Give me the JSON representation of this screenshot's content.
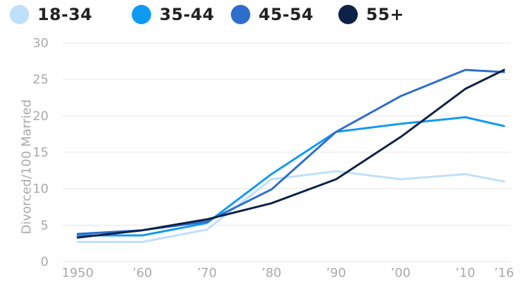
{
  "chart_data": {
    "type": "line",
    "title": "",
    "xlabel": "",
    "ylabel": "Divorced/100 Married",
    "x": [
      1950,
      1960,
      1970,
      1980,
      1990,
      2000,
      2010,
      2016
    ],
    "x_tick_labels": [
      "1950",
      "’'60",
      "’'70",
      "’'80",
      "’'90",
      "’'00",
      "’'10",
      "’'16"
    ],
    "y_ticks": [
      0,
      5,
      10,
      15,
      20,
      25,
      30
    ],
    "ylim": [
      0,
      30
    ],
    "grid": true,
    "legend_position": "top",
    "series": [
      {
        "name": "18-34",
        "color": "#bfe0fa",
        "values": [
          2.7,
          2.7,
          4.4,
          11.3,
          12.4,
          11.3,
          12.0,
          11.0
        ]
      },
      {
        "name": "35-44",
        "color": "#0f9af2",
        "values": [
          3.6,
          3.6,
          5.3,
          12.0,
          17.8,
          18.9,
          19.8,
          18.6
        ]
      },
      {
        "name": "45-54",
        "color": "#2e6dcc",
        "values": [
          3.8,
          4.3,
          5.5,
          9.9,
          17.8,
          22.7,
          26.3,
          26.0
        ]
      },
      {
        "name": "55+",
        "color": "#0e2247",
        "values": [
          3.3,
          4.3,
          5.8,
          8.0,
          11.3,
          17.1,
          23.7,
          26.3
        ]
      }
    ]
  }
}
